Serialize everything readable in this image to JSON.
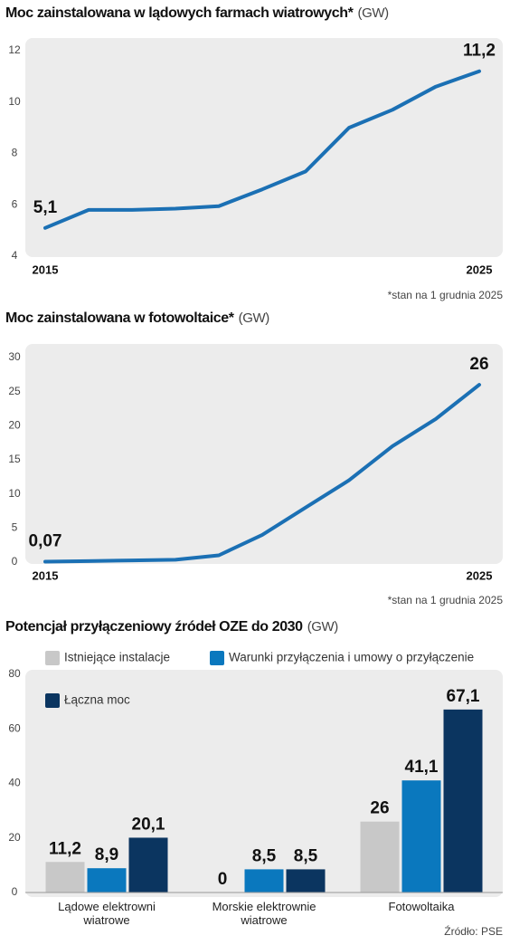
{
  "chart_data": [
    {
      "type": "line",
      "title": "Moc zainstalowana w lądowych farmach wiatrowych*",
      "title_unit": "(GW)",
      "x": [
        2015,
        2016,
        2017,
        2018,
        2019,
        2020,
        2021,
        2022,
        2023,
        2024,
        2025
      ],
      "values": [
        5.1,
        5.8,
        5.8,
        5.85,
        5.95,
        6.6,
        7.3,
        9.0,
        9.7,
        10.6,
        11.2
      ],
      "value_labels": [
        "5,1",
        null,
        null,
        null,
        null,
        null,
        null,
        null,
        null,
        null,
        "11,2"
      ],
      "color": "#1b70b4",
      "xlim": [
        2015,
        2025
      ],
      "xticks": [
        2015,
        2025
      ],
      "ylim": [
        4,
        12
      ],
      "yticks": [
        4,
        6,
        8,
        10,
        12
      ],
      "grid": false,
      "note": "*stan na 1 grudnia 2025"
    },
    {
      "type": "line",
      "title": "Moc zainstalowana w fotowoltaice*",
      "title_unit": "(GW)",
      "x": [
        2015,
        2016,
        2017,
        2018,
        2019,
        2020,
        2021,
        2022,
        2023,
        2024,
        2025
      ],
      "values": [
        0.07,
        0.15,
        0.25,
        0.35,
        1.0,
        4.0,
        8.0,
        12.0,
        17.0,
        21.0,
        26
      ],
      "value_labels": [
        "0,07",
        null,
        null,
        null,
        null,
        null,
        null,
        null,
        null,
        null,
        "26"
      ],
      "color": "#1b70b4",
      "xlim": [
        2015,
        2025
      ],
      "xticks": [
        2015,
        2025
      ],
      "ylim": [
        0,
        30
      ],
      "yticks": [
        0,
        5,
        10,
        15,
        20,
        25,
        30
      ],
      "grid": false,
      "note": "*stan na 1 grudnia 2025"
    },
    {
      "type": "bar",
      "title": "Potencjał przyłączeniowy źródeł OZE do 2030",
      "title_unit": "(GW)",
      "categories": [
        "Lądowe elektrowni wiatrowe",
        "Morskie elektrownie wiatrowe",
        "Fotowoltaika"
      ],
      "series": [
        {
          "name": "Istniejące instalacje",
          "color": "#c8c8c8",
          "values": [
            11.2,
            0,
            26
          ],
          "value_labels": [
            "11,2",
            "0",
            "26"
          ]
        },
        {
          "name": "Warunki przyłączenia i umowy o przyłączenie",
          "color": "#0a78be",
          "values": [
            8.9,
            8.5,
            41.1
          ],
          "value_labels": [
            "8,9",
            "8,5",
            "41,1"
          ]
        },
        {
          "name": "Łączna moc",
          "color": "#0b3560",
          "values": [
            20.1,
            8.5,
            67.1
          ],
          "value_labels": [
            "20,1",
            "8,5",
            "67,1"
          ]
        }
      ],
      "ylim": [
        0,
        80
      ],
      "yticks": [
        0,
        20,
        40,
        60,
        80
      ],
      "grid": false,
      "source": "Źródło: PSE"
    }
  ]
}
